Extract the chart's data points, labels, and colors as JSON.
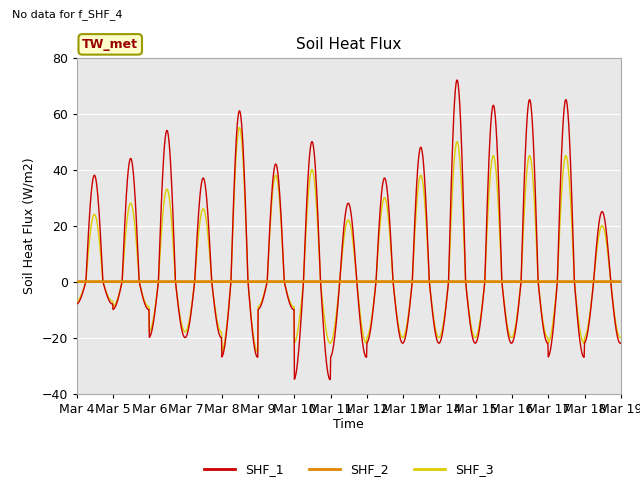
{
  "title": "Soil Heat Flux",
  "ylabel": "Soil Heat Flux (W/m2)",
  "xlabel": "Time",
  "ylim": [
    -40,
    80
  ],
  "xlim": [
    0,
    15
  ],
  "no_data_text": "No data for f_SHF_4",
  "station_label": "TW_met",
  "xtick_labels": [
    "Mar 4",
    "Mar 5",
    "Mar 6",
    "Mar 7",
    "Mar 8",
    "Mar 9",
    "Mar 10",
    "Mar 11",
    "Mar 12",
    "Mar 13",
    "Mar 14",
    "Mar 15",
    "Mar 16",
    "Mar 17",
    "Mar 18",
    "Mar 19"
  ],
  "line_colors": {
    "SHF_1": "#cc0000",
    "SHF_2": "#dd8800",
    "SHF_3": "#ddcc00"
  },
  "bg_color": "#e8e8e8",
  "grid_color": "#ffffff",
  "yticks": [
    -40,
    -20,
    0,
    20,
    40,
    60,
    80
  ],
  "figsize": [
    6.4,
    4.8
  ],
  "dpi": 100
}
